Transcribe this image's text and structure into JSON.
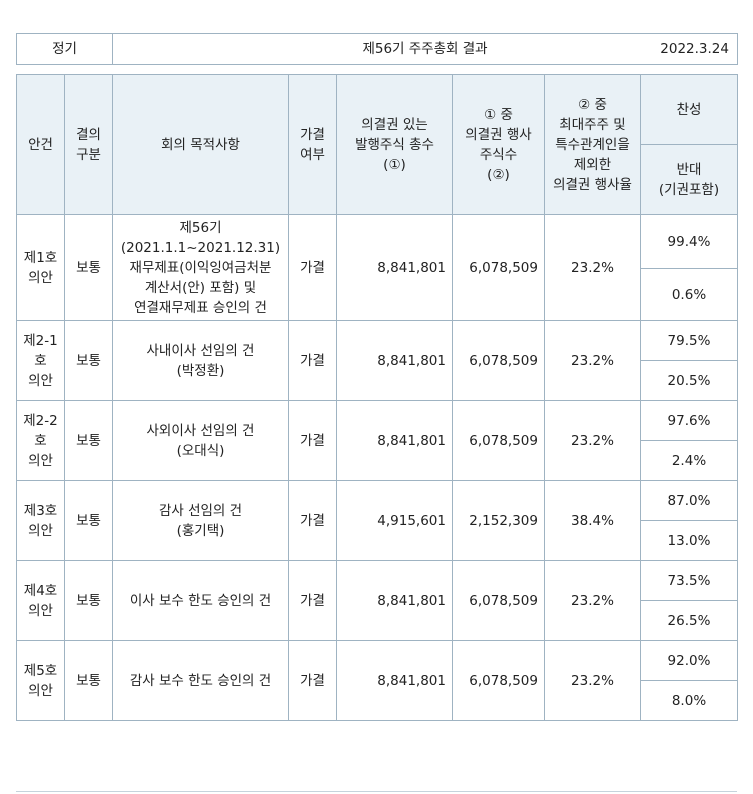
{
  "header": {
    "type": "정기",
    "title": "제56기 주주총회 결과",
    "date": "2022.3.24"
  },
  "columns": {
    "agenda": "안건",
    "resolution_type": [
      "결의",
      "구분"
    ],
    "purpose": "회의 목적사항",
    "passed": [
      "가결",
      "여부"
    ],
    "total_shares": [
      "의결권 있는",
      "발행주식 총수",
      "(①)"
    ],
    "exercised_shares": [
      "① 중",
      "의결권 행사",
      "주식수",
      "(②)"
    ],
    "exercise_rate": [
      "② 중",
      "최대주주 및",
      "특수관계인을",
      "제외한",
      "의결권 행사율"
    ],
    "approve": "찬성",
    "oppose": [
      "반대",
      "(기권포함)"
    ]
  },
  "rows": [
    {
      "agenda": [
        "제1호",
        "의안"
      ],
      "type": "보통",
      "purpose": [
        "제56기",
        "(2021.1.1~2021.12.31)",
        "재무제표(이익잉여금처분",
        "계산서(안) 포함) 및",
        "연결재무제표 승인의 건"
      ],
      "passed": "가결",
      "total_shares": "8,841,801",
      "exercised_shares": "6,078,509",
      "rate": "23.2%",
      "approve": "99.4%",
      "oppose": "0.6%"
    },
    {
      "agenda": [
        "제2-1",
        "호",
        "의안"
      ],
      "type": "보통",
      "purpose": [
        "사내이사 선임의 건",
        "(박정환)"
      ],
      "passed": "가결",
      "total_shares": "8,841,801",
      "exercised_shares": "6,078,509",
      "rate": "23.2%",
      "approve": "79.5%",
      "oppose": "20.5%"
    },
    {
      "agenda": [
        "제2-2",
        "호",
        "의안"
      ],
      "type": "보통",
      "purpose": [
        "사외이사 선임의 건",
        "(오대식)"
      ],
      "passed": "가결",
      "total_shares": "8,841,801",
      "exercised_shares": "6,078,509",
      "rate": "23.2%",
      "approve": "97.6%",
      "oppose": "2.4%"
    },
    {
      "agenda": [
        "제3호",
        "의안"
      ],
      "type": "보통",
      "purpose": [
        "감사 선임의 건",
        "(홍기택)"
      ],
      "passed": "가결",
      "total_shares": "4,915,601",
      "exercised_shares": "2,152,309",
      "rate": "38.4%",
      "approve": "87.0%",
      "oppose": "13.0%"
    },
    {
      "agenda": [
        "제4호",
        "의안"
      ],
      "type": "보통",
      "purpose": [
        "이사 보수 한도 승인의 건"
      ],
      "passed": "가결",
      "total_shares": "8,841,801",
      "exercised_shares": "6,078,509",
      "rate": "23.2%",
      "approve": "73.5%",
      "oppose": "26.5%"
    },
    {
      "agenda": [
        "제5호",
        "의안"
      ],
      "type": "보통",
      "purpose": [
        "감사 보수 한도 승인의 건"
      ],
      "passed": "가결",
      "total_shares": "8,841,801",
      "exercised_shares": "6,078,509",
      "rate": "23.2%",
      "approve": "92.0%",
      "oppose": "8.0%"
    }
  ]
}
